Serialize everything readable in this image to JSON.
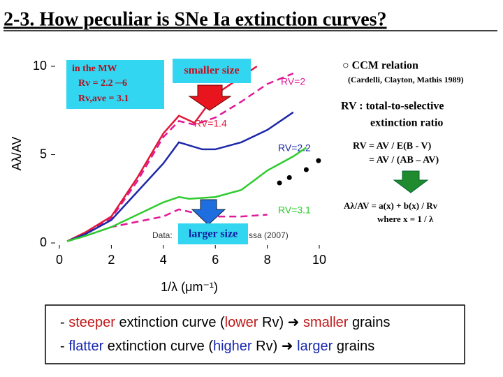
{
  "title": "2-3. How peculiar is SNe Ia extinction curves?",
  "mw_box": [
    "in the MW",
    "Rv = 2.2 ─6",
    "Rv,ave = 3.1"
  ],
  "smaller_box": "smaller size",
  "larger_box": "larger size",
  "right_notes": [
    "○ CCM relation",
    "(Cardelli, Clayton, Mathis 1989)",
    "RV : total-to-selective",
    "extinction ratio",
    "RV = AV / E(B - V)",
    "= AV / (AB – AV)",
    "Aλ/AV = a(x) + b(x) / Rv",
    "where x = 1 / λ"
  ],
  "bottom": [
    [
      "- ",
      "steeper",
      " extinction curve (",
      "lower",
      " Rv) ➜ ",
      "smaller",
      " grains"
    ],
    [
      "- ",
      "flatter",
      " extinction curve (",
      "higher",
      " Rv) ➜ ",
      "larger",
      " grains"
    ]
  ],
  "chart_data": {
    "type": "line",
    "x_label": "1/λ (μm⁻¹)",
    "y_label": "Aλ/AV",
    "annotations": [
      "Data:",
      "ssa (2007)"
    ],
    "xlim": [
      0,
      10
    ],
    "ylim": [
      0,
      11
    ],
    "xticks": [
      0,
      2,
      4,
      6,
      8,
      10
    ],
    "yticks": [
      0,
      5,
      10
    ],
    "series": [
      {
        "name": "RV=2",
        "color": "#e0189a",
        "dash": true,
        "x": [
          0.3,
          1,
          2,
          3,
          4,
          4.6,
          5.2,
          6,
          7,
          8,
          9
        ],
        "values": [
          0.1,
          0.5,
          1.4,
          3.5,
          6.0,
          6.9,
          6.7,
          7.1,
          8.0,
          9.0,
          9.6
        ]
      },
      {
        "color": "#e0189a",
        "dash": true,
        "x": [
          0.3,
          1,
          2,
          3,
          4,
          4.6,
          5.2,
          6,
          7,
          8
        ],
        "values": [
          0.1,
          0.4,
          0.9,
          1.2,
          1.5,
          1.9,
          1.7,
          1.5,
          1.5,
          1.6
        ]
      },
      {
        "name": "RV=1.4",
        "color": "#e0183a",
        "x": [
          0.3,
          1,
          2,
          3,
          4,
          4.6,
          5.2,
          6,
          7,
          7.6
        ],
        "values": [
          0.1,
          0.6,
          1.5,
          3.7,
          6.2,
          7.2,
          6.8,
          8.4,
          9.4,
          10
        ]
      },
      {
        "name": "RV=2.2",
        "color": "#1c28a8",
        "x": [
          0.3,
          1,
          2,
          3,
          4,
          4.6,
          5.5,
          6,
          7,
          8,
          9
        ],
        "values": [
          0.1,
          0.5,
          1.3,
          2.9,
          4.5,
          5.7,
          5.3,
          5.3,
          5.7,
          6.4,
          7.4
        ]
      },
      {
        "name": "RV=3.1",
        "color": "#2ecc2e",
        "x": [
          0.3,
          1,
          2,
          3,
          4,
          4.6,
          5,
          6,
          7,
          8,
          9,
          9.5
        ],
        "values": [
          0.1,
          0.4,
          0.9,
          1.6,
          2.3,
          2.6,
          2.5,
          2.6,
          3.0,
          4.1,
          4.9,
          5.4
        ]
      },
      {
        "color": "#000000",
        "markers": true,
        "x": [
          8.47,
          8.85,
          9.5,
          9.97
        ],
        "values": [
          3.4,
          3.7,
          4.15,
          4.66
        ]
      }
    ]
  }
}
